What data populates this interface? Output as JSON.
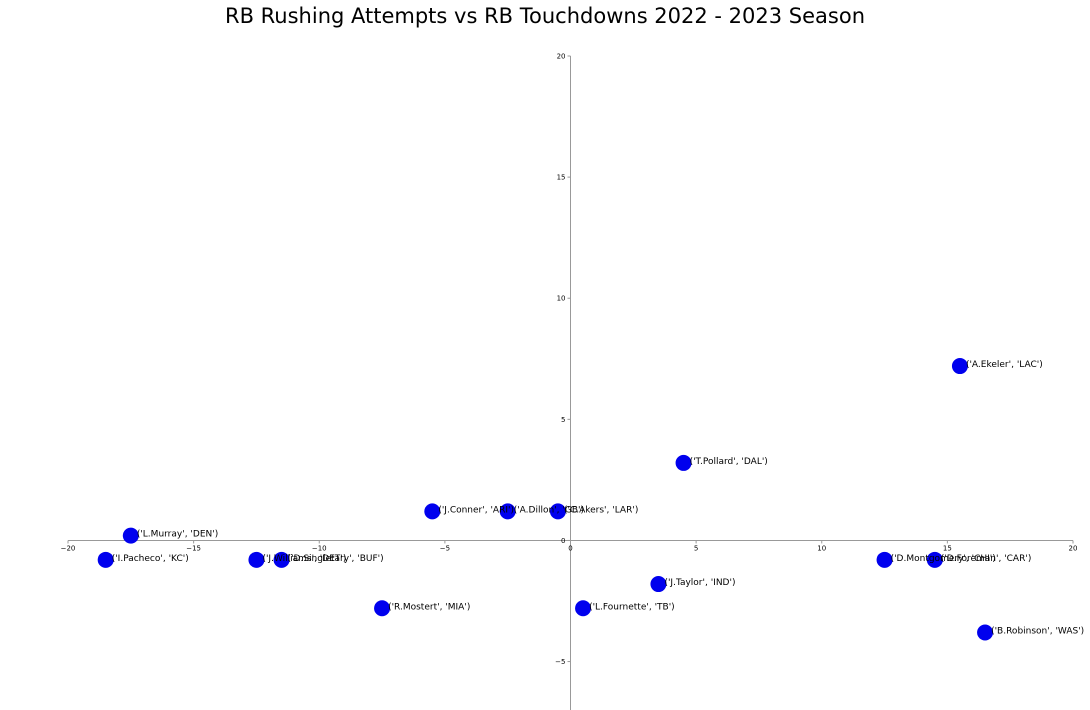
{
  "chart_data": {
    "type": "scatter",
    "title": "RB Rushing Attempts vs RB Touchdowns 2022 - 2023 Season",
    "xlabel": "",
    "ylabel": "",
    "xlim": [
      -20,
      20
    ],
    "ylim": [
      -7,
      20
    ],
    "x_ticks": [
      -20,
      -15,
      -10,
      -5,
      0,
      5,
      10,
      15,
      20
    ],
    "y_ticks": [
      -5,
      0,
      5,
      10,
      15,
      20
    ],
    "x_tick_labels": [
      "−20",
      "−15",
      "−10",
      "−5",
      "0",
      "5",
      "10",
      "15",
      "20"
    ],
    "y_tick_labels": [
      "−5",
      "0",
      "5",
      "10",
      "15",
      "20"
    ],
    "axes_through_origin": true,
    "grid": false,
    "marker_color": "#0000ee",
    "points": [
      {
        "x": 15.5,
        "y": 7.2,
        "label": "('A.Ekeler', 'LAC')"
      },
      {
        "x": 4.5,
        "y": 3.2,
        "label": "('T.Pollard', 'DAL')"
      },
      {
        "x": -5.5,
        "y": 1.2,
        "label": "('J.Conner', 'ARI')"
      },
      {
        "x": -2.5,
        "y": 1.2,
        "label": "('A.Dillon', 'GB')"
      },
      {
        "x": -0.5,
        "y": 1.2,
        "label": "('C.Akers', 'LAR')"
      },
      {
        "x": -17.5,
        "y": 0.2,
        "label": "('L.Murray', 'DEN')"
      },
      {
        "x": -18.5,
        "y": -0.8,
        "label": "('I.Pacheco', 'KC')"
      },
      {
        "x": -12.5,
        "y": -0.8,
        "label": "('J.Williams', 'DET')"
      },
      {
        "x": -11.5,
        "y": -0.8,
        "label": "('D.Singletary', 'BUF')"
      },
      {
        "x": 12.5,
        "y": -0.8,
        "label": "('D.Montgomery', 'CHI')"
      },
      {
        "x": 14.5,
        "y": -0.8,
        "label": "('D.Foreman', 'CAR')"
      },
      {
        "x": 3.5,
        "y": -1.8,
        "label": "('J.Taylor', 'IND')"
      },
      {
        "x": -7.5,
        "y": -2.8,
        "label": "('R.Mostert', 'MIA')"
      },
      {
        "x": 0.5,
        "y": -2.8,
        "label": "('L.Fournette', 'TB')"
      },
      {
        "x": 16.5,
        "y": -3.8,
        "label": "('B.Robinson', 'WAS')"
      }
    ]
  }
}
